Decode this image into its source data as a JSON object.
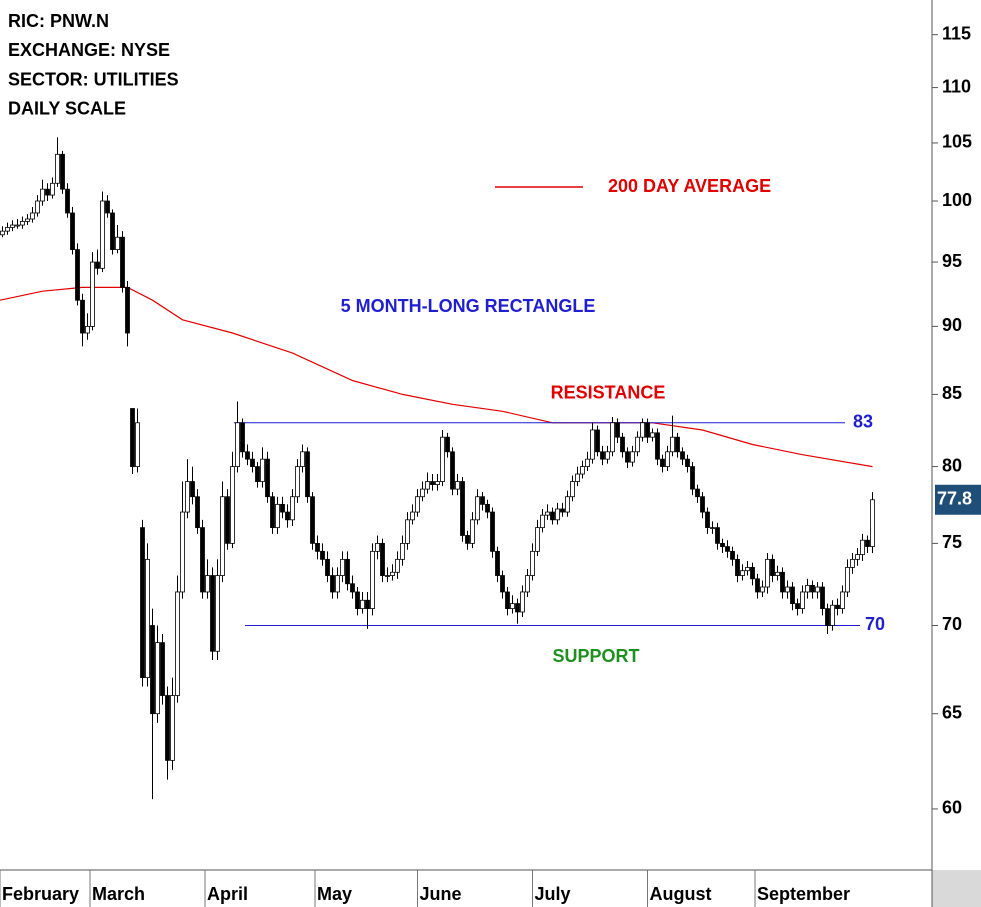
{
  "chart_data": {
    "type": "candlestick",
    "header": [
      "RIC: PNW.N",
      "EXCHANGE: NYSE",
      "SECTOR: UTILITIES",
      "DAILY SCALE"
    ],
    "log_scale": true,
    "up_color": "#ffffff",
    "down_color": "#000000",
    "ylim": [
      57,
      118.4
    ],
    "yticks": [
      60,
      65,
      70,
      75,
      80,
      85,
      90,
      95,
      100,
      105,
      110,
      115
    ],
    "xlim": [
      -0.5,
      185.5
    ],
    "xticks": [
      {
        "value": -0.5,
        "label": "February"
      },
      {
        "value": 17.5,
        "label": "March"
      },
      {
        "value": 40.5,
        "label": "April"
      },
      {
        "value": 62.5,
        "label": "May"
      },
      {
        "value": 83,
        "label": "June"
      },
      {
        "value": 106,
        "label": "July"
      },
      {
        "value": 129,
        "label": "August"
      },
      {
        "value": 150.5,
        "label": "September"
      }
    ],
    "open": [
      97.2,
      97.5,
      97.8,
      98,
      98,
      98.3,
      98.5,
      99,
      100,
      101,
      100.5,
      101.5,
      104,
      101,
      99,
      96,
      92,
      89.5,
      90,
      95,
      94.5,
      100,
      99,
      96,
      97,
      93,
      84,
      80,
      76,
      67,
      70,
      65,
      69,
      66,
      62.5,
      66,
      72,
      77,
      79,
      78,
      76,
      72,
      73,
      68.5,
      73,
      78,
      75,
      80,
      83,
      81,
      80.5,
      80,
      79,
      80.5,
      78,
      76,
      77.5,
      77,
      76.5,
      78,
      80,
      81,
      78,
      75,
      74.5,
      74,
      73,
      72,
      73,
      74,
      72.5,
      72,
      71,
      71.5,
      71,
      74.5,
      75,
      73,
      73,
      73.2,
      74,
      75,
      76.5,
      77,
      78,
      78.5,
      79,
      78.8,
      79,
      82,
      81,
      78.5,
      79,
      75.5,
      75,
      76.5,
      78,
      77.5,
      77,
      74.5,
      73,
      72,
      71,
      71.3,
      70.8,
      72,
      73,
      74.5,
      76,
      76.8,
      77,
      76.5,
      77.2,
      77,
      78,
      79,
      79.5,
      80,
      80.5,
      82.5,
      81,
      80.5,
      81,
      83,
      82,
      81,
      80.3,
      81,
      82,
      83,
      82,
      82.3,
      80.5,
      80,
      81,
      82,
      81,
      80.5,
      80,
      78.5,
      78,
      77,
      76,
      76,
      75,
      74.8,
      74.5,
      74,
      73,
      73.3,
      73.5,
      72.8,
      72,
      72.3,
      74,
      73,
      73.2,
      72,
      72.3,
      71.3,
      71,
      72,
      72.4,
      72,
      72.3,
      71,
      70,
      71.2,
      71,
      72,
      73.5,
      74,
      74.3,
      75.2,
      74.8
    ],
    "high": [
      97.9,
      98.2,
      98.4,
      98.5,
      98.7,
      98.9,
      99.5,
      100.5,
      101.8,
      101.5,
      102,
      105.5,
      104.3,
      101.5,
      99.5,
      96.5,
      92.5,
      91,
      95.8,
      96,
      100.8,
      100.5,
      99.3,
      98,
      97.5,
      93.5,
      84,
      84,
      76.5,
      75,
      71,
      70,
      69.5,
      66.5,
      67,
      73,
      79,
      80.5,
      80,
      78.5,
      76.5,
      74,
      73.5,
      74,
      79,
      78.5,
      81,
      84.5,
      83.3,
      81.5,
      81,
      80.3,
      81.3,
      81,
      78.3,
      78,
      78,
      77.5,
      78.5,
      80.5,
      81.5,
      81.3,
      78.3,
      75.5,
      75,
      74.5,
      73.5,
      73.5,
      74.5,
      74.5,
      73,
      72.3,
      72,
      72,
      75,
      75.5,
      75.3,
      73.5,
      73.7,
      74.5,
      75.5,
      77,
      77.5,
      78.5,
      79,
      79.6,
      79.5,
      79.5,
      82.5,
      82.3,
      81.3,
      79.5,
      79.3,
      75.8,
      77,
      78.5,
      78.3,
      77.8,
      77.3,
      74.8,
      73.3,
      72.3,
      71.8,
      71.6,
      72.4,
      73.4,
      75,
      76.5,
      77.2,
      77.5,
      77.3,
      77.6,
      77.6,
      78.4,
      79.4,
      80,
      80.4,
      81,
      83,
      82.8,
      81.4,
      81.4,
      83.4,
      83.3,
      82.3,
      81.3,
      81.4,
      82.4,
      83.3,
      83.3,
      82.6,
      82.6,
      80.8,
      81.4,
      83.5,
      82.3,
      81.3,
      80.8,
      80.3,
      78.8,
      78.3,
      77.3,
      76.4,
      76.3,
      75.3,
      75.2,
      74.8,
      74.3,
      73.7,
      73.9,
      73.8,
      73.1,
      72.7,
      74.4,
      74.3,
      73.6,
      73.5,
      72.7,
      72.6,
      71.6,
      72.4,
      72.8,
      72.7,
      72.6,
      72.6,
      71.3,
      71.5,
      71.6,
      72.4,
      74,
      74.4,
      74.7,
      75.6,
      75.5,
      78.3
    ],
    "low": [
      97,
      97.2,
      97.5,
      97.7,
      97.7,
      98,
      98.2,
      98.7,
      99.6,
      100,
      100.2,
      101.2,
      100.6,
      98.6,
      95.6,
      91.6,
      88.5,
      89,
      89.7,
      94,
      94.2,
      98.6,
      95.6,
      95.7,
      92.6,
      88.5,
      79.5,
      79.6,
      66.5,
      66.5,
      60.5,
      64.5,
      65.5,
      61.5,
      62,
      65.6,
      71.6,
      76.6,
      77.5,
      75.6,
      71.6,
      71.6,
      68,
      68,
      72.6,
      74.6,
      74.7,
      79.6,
      80.6,
      80.1,
      79.6,
      78.6,
      78.6,
      77.6,
      75.6,
      75.6,
      76.6,
      76,
      76.1,
      77.6,
      79.6,
      77.6,
      74.6,
      74,
      73.6,
      72.6,
      71.6,
      71.6,
      72.6,
      72.1,
      71.6,
      70.6,
      70.7,
      69.8,
      70.6,
      74,
      72.6,
      72.6,
      72.7,
      72.8,
      73.6,
      74.6,
      76.2,
      76.7,
      77.7,
      78.2,
      78.4,
      78.4,
      78.7,
      80.6,
      78.1,
      78.1,
      75.1,
      74.6,
      74.7,
      76.2,
      77.1,
      76.6,
      74.1,
      72.6,
      71.6,
      70.6,
      70.7,
      70.1,
      70.5,
      71.7,
      72.7,
      74.2,
      75.7,
      76.5,
      76.2,
      76.2,
      76.7,
      76.7,
      77.7,
      78.7,
      79.2,
      79.7,
      80.2,
      80.7,
      80.1,
      80.2,
      80.7,
      81.6,
      80.6,
      79.9,
      80,
      80.7,
      81.7,
      81.6,
      81.7,
      80.1,
      79.6,
      79.7,
      80.7,
      80.6,
      80.1,
      79.6,
      78.1,
      77.6,
      76.6,
      75.6,
      75.6,
      74.6,
      74.4,
      74.1,
      73.6,
      72.6,
      72.7,
      73,
      72.4,
      71.6,
      71.7,
      71.9,
      72.6,
      72.7,
      71.6,
      71.6,
      70.9,
      70.6,
      70.7,
      71.6,
      71.6,
      71.6,
      70.6,
      69.5,
      69.7,
      70.6,
      70.7,
      71.7,
      73.1,
      73.6,
      73.9,
      74.4,
      74.4
    ],
    "close": [
      97.5,
      97.8,
      98,
      98,
      98.3,
      98.5,
      99,
      100,
      101,
      100.5,
      101.5,
      104,
      101,
      99,
      96,
      92,
      89.5,
      90,
      95,
      94.5,
      100,
      99,
      96,
      97,
      93,
      89.5,
      80,
      83,
      67,
      74,
      65,
      69,
      66,
      62.5,
      66,
      72,
      77,
      79,
      78,
      76,
      72,
      73,
      68.5,
      73,
      78,
      75,
      80,
      83,
      81,
      80.5,
      80,
      79,
      80.5,
      78,
      76,
      77.5,
      77,
      76.5,
      78,
      80,
      81,
      78,
      75,
      74.5,
      74,
      73,
      72,
      73,
      74,
      72.5,
      72,
      71,
      71.5,
      71,
      74.5,
      75,
      73,
      73,
      73.2,
      74,
      75,
      76.5,
      77,
      78,
      78.5,
      79,
      78.8,
      79,
      82,
      81,
      78.5,
      79,
      75.5,
      75,
      76.5,
      78,
      77.5,
      77,
      74.5,
      73,
      72,
      71,
      71.3,
      70.8,
      72,
      73,
      74.5,
      76,
      76.8,
      77,
      76.5,
      77.2,
      77,
      78,
      79,
      79.5,
      80,
      80.5,
      82.5,
      81,
      80.5,
      81,
      83,
      82,
      81,
      80.3,
      81,
      82,
      83,
      82,
      82.3,
      80.5,
      80,
      81,
      82,
      81,
      80.5,
      80,
      78.5,
      78,
      77,
      76,
      76,
      75,
      74.8,
      74.5,
      74,
      73,
      73.3,
      73.5,
      72.8,
      72,
      72.3,
      74,
      73,
      73.2,
      72,
      72.3,
      71.3,
      71,
      72,
      72.4,
      72,
      72.3,
      71,
      70,
      71.2,
      71,
      72,
      73.5,
      74,
      74.3,
      75.2,
      74.8,
      77.8
    ],
    "moving_average": {
      "name": "200 DAY AVERAGE",
      "color": "#e00000",
      "x": [
        -0.5,
        8,
        16,
        25,
        30,
        36,
        46,
        58,
        70,
        80,
        90,
        100,
        110,
        120,
        130,
        140,
        150,
        160,
        174
      ],
      "values": [
        92,
        92.7,
        93,
        93,
        92,
        90.5,
        89.5,
        88,
        86,
        85,
        84.3,
        83.8,
        83,
        83,
        83,
        82.5,
        81.5,
        80.8,
        80
      ]
    },
    "annotation": {
      "text": "5 MONTH-LONG RECTANGLE",
      "color": "#1f1fd0"
    },
    "levels": [
      {
        "name": "RESISTANCE",
        "value": 83,
        "color": "#1f1fd0",
        "name_color": "#e00000"
      },
      {
        "name": "SUPPORT",
        "value": 70,
        "color": "#1f1fd0",
        "name_color": "#1f8f1f"
      }
    ],
    "last_price": 77.8
  }
}
